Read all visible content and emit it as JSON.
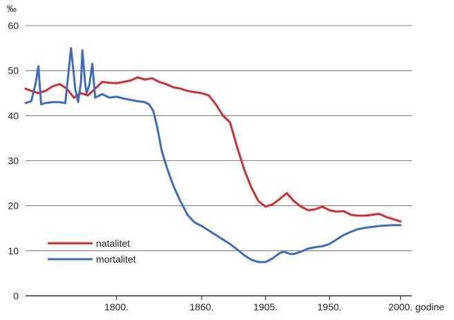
{
  "chart_data": {
    "type": "line",
    "title": "",
    "ylabel": "‰",
    "xlabel": "godine",
    "ylim": [
      0,
      60
    ],
    "xlim": [
      1736,
      2008
    ],
    "yticks": [
      0,
      10,
      20,
      30,
      40,
      50,
      60
    ],
    "xticks": [
      {
        "value": 1800,
        "label": "1800."
      },
      {
        "value": 1860,
        "label": "1860."
      },
      {
        "value": 1905,
        "label": "1905."
      },
      {
        "value": 1950,
        "label": "1950."
      },
      {
        "value": 2000,
        "label": "2000."
      }
    ],
    "grid": "horizontal",
    "legend_position": "bottom-left",
    "series": [
      {
        "name": "natalitet",
        "color": "#d62a2e",
        "points": [
          [
            1736,
            46.0
          ],
          [
            1740,
            45.5
          ],
          [
            1745,
            45.0
          ],
          [
            1750,
            45.5
          ],
          [
            1755,
            46.5
          ],
          [
            1760,
            47.0
          ],
          [
            1765,
            46.0
          ],
          [
            1770,
            44.0
          ],
          [
            1775,
            45.0
          ],
          [
            1780,
            44.5
          ],
          [
            1785,
            46.0
          ],
          [
            1790,
            47.5
          ],
          [
            1795,
            47.3
          ],
          [
            1800,
            47.2
          ],
          [
            1805,
            47.5
          ],
          [
            1810,
            47.8
          ],
          [
            1815,
            48.5
          ],
          [
            1820,
            48.0
          ],
          [
            1825,
            48.3
          ],
          [
            1830,
            47.5
          ],
          [
            1835,
            47.0
          ],
          [
            1840,
            46.3
          ],
          [
            1845,
            46.0
          ],
          [
            1850,
            45.5
          ],
          [
            1855,
            45.2
          ],
          [
            1860,
            45.0
          ],
          [
            1865,
            44.5
          ],
          [
            1870,
            42.5
          ],
          [
            1875,
            40.0
          ],
          [
            1880,
            38.5
          ],
          [
            1885,
            33.0
          ],
          [
            1890,
            28.0
          ],
          [
            1895,
            24.0
          ],
          [
            1900,
            21.0
          ],
          [
            1905,
            19.8
          ],
          [
            1910,
            20.3
          ],
          [
            1915,
            21.5
          ],
          [
            1920,
            22.8
          ],
          [
            1925,
            21.0
          ],
          [
            1930,
            19.8
          ],
          [
            1935,
            19.0
          ],
          [
            1940,
            19.2
          ],
          [
            1945,
            19.8
          ],
          [
            1950,
            19.0
          ],
          [
            1955,
            18.7
          ],
          [
            1960,
            18.8
          ],
          [
            1965,
            18.0
          ],
          [
            1970,
            17.8
          ],
          [
            1975,
            17.8
          ],
          [
            1980,
            18.0
          ],
          [
            1985,
            18.2
          ],
          [
            1990,
            17.5
          ],
          [
            1995,
            17.0
          ],
          [
            2000,
            16.5
          ]
        ]
      },
      {
        "name": "mortalitet",
        "color": "#3b6bc4",
        "points": [
          [
            1736,
            42.8
          ],
          [
            1740,
            43.2
          ],
          [
            1743,
            47.0
          ],
          [
            1745,
            51.0
          ],
          [
            1747,
            42.5
          ],
          [
            1750,
            42.8
          ],
          [
            1755,
            43.0
          ],
          [
            1760,
            43.0
          ],
          [
            1764,
            42.8
          ],
          [
            1766,
            49.0
          ],
          [
            1768,
            55.0
          ],
          [
            1771,
            46.0
          ],
          [
            1773,
            43.0
          ],
          [
            1775,
            47.5
          ],
          [
            1776,
            54.5
          ],
          [
            1778,
            47.0
          ],
          [
            1779,
            45.0
          ],
          [
            1781,
            47.0
          ],
          [
            1783,
            51.5
          ],
          [
            1785,
            44.0
          ],
          [
            1790,
            44.8
          ],
          [
            1795,
            44.0
          ],
          [
            1800,
            44.2
          ],
          [
            1805,
            43.8
          ],
          [
            1810,
            43.5
          ],
          [
            1815,
            43.2
          ],
          [
            1820,
            43.0
          ],
          [
            1823,
            42.5
          ],
          [
            1826,
            41.0
          ],
          [
            1829,
            37.0
          ],
          [
            1832,
            32.0
          ],
          [
            1836,
            28.0
          ],
          [
            1840,
            24.5
          ],
          [
            1845,
            21.0
          ],
          [
            1850,
            18.0
          ],
          [
            1855,
            16.3
          ],
          [
            1860,
            15.5
          ],
          [
            1865,
            14.5
          ],
          [
            1870,
            13.5
          ],
          [
            1875,
            12.5
          ],
          [
            1880,
            11.5
          ],
          [
            1885,
            10.3
          ],
          [
            1890,
            9.0
          ],
          [
            1895,
            8.0
          ],
          [
            1900,
            7.5
          ],
          [
            1905,
            7.5
          ],
          [
            1910,
            8.3
          ],
          [
            1915,
            9.5
          ],
          [
            1918,
            9.8
          ],
          [
            1922,
            9.3
          ],
          [
            1925,
            9.3
          ],
          [
            1930,
            9.8
          ],
          [
            1935,
            10.5
          ],
          [
            1940,
            10.8
          ],
          [
            1945,
            11.0
          ],
          [
            1950,
            11.5
          ],
          [
            1955,
            12.5
          ],
          [
            1960,
            13.5
          ],
          [
            1965,
            14.2
          ],
          [
            1970,
            14.8
          ],
          [
            1975,
            15.1
          ],
          [
            1980,
            15.3
          ],
          [
            1985,
            15.5
          ],
          [
            1990,
            15.6
          ],
          [
            1995,
            15.7
          ],
          [
            2000,
            15.7
          ]
        ]
      }
    ]
  }
}
